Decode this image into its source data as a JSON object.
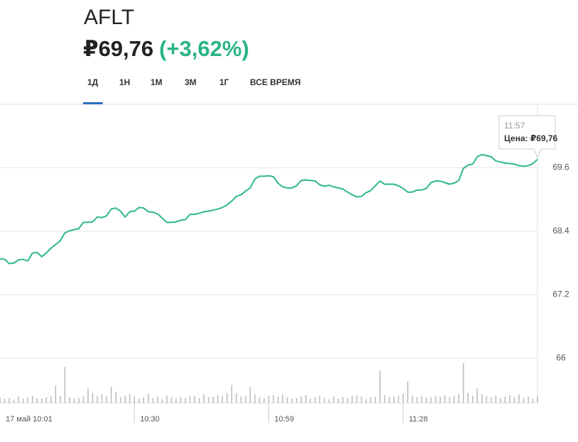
{
  "header": {
    "ticker": "AFLT",
    "price": "₽69,76",
    "change": "(+3,62%)"
  },
  "tabs": [
    {
      "label": "1Д",
      "active": true
    },
    {
      "label": "1Н"
    },
    {
      "label": "1М"
    },
    {
      "label": "3М"
    },
    {
      "label": "1Г"
    },
    {
      "label": "ВСЕ ВРЕМЯ"
    }
  ],
  "tooltip": {
    "time": "11:57",
    "text": "Цена: ₽69,76"
  },
  "chart_data": {
    "type": "line",
    "categories": [
      "17 май 10:01",
      null,
      null,
      null,
      null,
      null,
      null,
      null,
      null,
      null,
      null,
      null,
      null,
      null,
      null,
      null,
      null,
      null,
      null,
      null,
      null,
      null,
      null,
      null,
      null,
      null,
      null,
      null,
      null,
      "10:30",
      null,
      null,
      null,
      null,
      null,
      null,
      null,
      null,
      null,
      null,
      null,
      null,
      null,
      null,
      null,
      null,
      null,
      null,
      null,
      null,
      null,
      null,
      null,
      null,
      null,
      null,
      null,
      null,
      "10:59",
      null,
      null,
      null,
      null,
      null,
      null,
      null,
      null,
      null,
      null,
      null,
      null,
      null,
      null,
      null,
      null,
      null,
      null,
      null,
      null,
      null,
      null,
      null,
      null,
      null,
      null,
      null,
      null,
      "11:28",
      null,
      null,
      null,
      null,
      null,
      null,
      null,
      null,
      null,
      null,
      null,
      null,
      null,
      null,
      null,
      null,
      null,
      null,
      null,
      null,
      null,
      null,
      null,
      null,
      null,
      null,
      null,
      null,
      null
    ],
    "series": [
      {
        "name": "Цена",
        "color": "#2eb886",
        "values": [
          67.88,
          67.87,
          67.79,
          67.8,
          67.86,
          67.87,
          67.84,
          67.99,
          68.0,
          67.92,
          67.99,
          68.08,
          68.15,
          68.22,
          68.37,
          68.41,
          68.43,
          68.45,
          68.57,
          68.57,
          68.58,
          68.67,
          68.66,
          68.69,
          68.82,
          68.84,
          68.78,
          68.67,
          68.77,
          68.78,
          68.85,
          68.84,
          68.77,
          68.76,
          68.73,
          68.65,
          68.57,
          68.57,
          68.58,
          68.61,
          68.62,
          68.72,
          68.72,
          68.74,
          68.77,
          68.78,
          68.8,
          68.82,
          68.85,
          68.9,
          68.97,
          69.06,
          69.09,
          69.16,
          69.22,
          69.39,
          69.44,
          69.44,
          69.45,
          69.43,
          69.31,
          69.24,
          69.22,
          69.22,
          69.26,
          69.36,
          69.37,
          69.36,
          69.35,
          69.28,
          69.25,
          69.27,
          69.24,
          69.22,
          69.2,
          69.14,
          69.09,
          69.05,
          69.06,
          69.13,
          69.17,
          69.26,
          69.35,
          69.29,
          69.29,
          69.29,
          69.26,
          69.21,
          69.14,
          69.14,
          69.18,
          69.18,
          69.21,
          69.32,
          69.35,
          69.35,
          69.32,
          69.29,
          69.31,
          69.36,
          69.59,
          69.65,
          69.67,
          69.81,
          69.85,
          69.83,
          69.81,
          69.73,
          69.71,
          69.69,
          69.68,
          69.67,
          69.64,
          69.63,
          69.64,
          69.68,
          69.76
        ]
      }
    ],
    "volume": {
      "color": "#bdbdbd",
      "vlim": [
        0,
        60
      ],
      "values": [
        8,
        6,
        7,
        5,
        9,
        6,
        8,
        10,
        7,
        6,
        8,
        9,
        24,
        10,
        50,
        8,
        6,
        7,
        9,
        20,
        14,
        10,
        12,
        9,
        22,
        15,
        8,
        10,
        12,
        9,
        6,
        8,
        13,
        7,
        9,
        5,
        10,
        8,
        6,
        8,
        7,
        9,
        10,
        7,
        12,
        8,
        9,
        11,
        10,
        14,
        25,
        13,
        9,
        10,
        22,
        12,
        8,
        7,
        10,
        11,
        9,
        12,
        8,
        6,
        7,
        9,
        11,
        6,
        8,
        10,
        7,
        5,
        9,
        6,
        8,
        7,
        10,
        11,
        9,
        6,
        8,
        9,
        45,
        11,
        8,
        9,
        10,
        13,
        30,
        10,
        8,
        9,
        7,
        8,
        10,
        9,
        11,
        8,
        10,
        12,
        55,
        14,
        10,
        20,
        12,
        9,
        8,
        10,
        7,
        9,
        11,
        8,
        12,
        7,
        9,
        6,
        10
      ]
    },
    "ylim": [
      66,
      70.8
    ],
    "yticks": [
      66,
      67.2,
      68.4,
      69.6
    ],
    "grid": true
  }
}
